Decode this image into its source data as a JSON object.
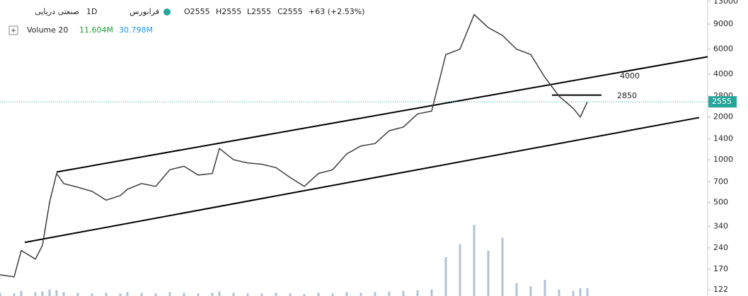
{
  "chart_data": {
    "type": "line",
    "symbol_name": "صنعتی دریایی",
    "interval": "1D",
    "exchange": "فرابورس",
    "ohlc": [
      "O2555",
      "H2555",
      "L2555",
      "C2555"
    ],
    "change": "+63 (+2.53%)",
    "volume_label": "Volume 20",
    "volume_texts": [
      "11.604M",
      "30.798M"
    ],
    "x": [
      0,
      2,
      3,
      5,
      6,
      7,
      8,
      9,
      11,
      13,
      15,
      17,
      18,
      20,
      22,
      24,
      26,
      28,
      30,
      31,
      33,
      35,
      37,
      39,
      41,
      43,
      45,
      47,
      49,
      51,
      53,
      55,
      57,
      59,
      61,
      63,
      65,
      67,
      69,
      71,
      73,
      75,
      77,
      79,
      81,
      82,
      83
    ],
    "values": [
      155,
      150,
      230,
      200,
      250,
      500,
      800,
      680,
      640,
      600,
      520,
      560,
      620,
      680,
      650,
      850,
      900,
      780,
      800,
      1200,
      1000,
      950,
      930,
      880,
      750,
      650,
      800,
      850,
      1100,
      1250,
      1300,
      1600,
      1700,
      2100,
      2200,
      5500,
      6000,
      10500,
      8500,
      7500,
      6000,
      5500,
      3800,
      2800,
      2300,
      2000,
      2555
    ],
    "volume": [
      5,
      4,
      8,
      6,
      7,
      10,
      9,
      6,
      5,
      4,
      5,
      4,
      6,
      5,
      4,
      6,
      5,
      4,
      5,
      7,
      5,
      4,
      4,
      5,
      4,
      3,
      5,
      4,
      6,
      5,
      6,
      7,
      8,
      9,
      10,
      60,
      80,
      110,
      70,
      90,
      20,
      15,
      25,
      10,
      8,
      12,
      12
    ],
    "color": "#3d3d3d",
    "volume_color": "#9fb3c8",
    "xlim": [
      0,
      100
    ],
    "ylim": [
      110,
      13300
    ],
    "log_scale": true,
    "vlim": [
      0,
      120
    ],
    "yticks": [
      13000,
      9000,
      6000,
      4000,
      2800,
      2000,
      1400,
      1000,
      700,
      500,
      340,
      240,
      170,
      122
    ],
    "last_price": 2555,
    "trend_lines": [
      {
        "x": [
          8,
          100
        ],
        "y": [
          820,
          5300
        ]
      },
      {
        "x": [
          3.5,
          98.8
        ],
        "y": [
          262,
          1980
        ]
      },
      {
        "x": [
          78,
          85
        ],
        "y": [
          2850,
          2850
        ]
      }
    ],
    "annotations": [
      "4000",
      "2850"
    ]
  }
}
